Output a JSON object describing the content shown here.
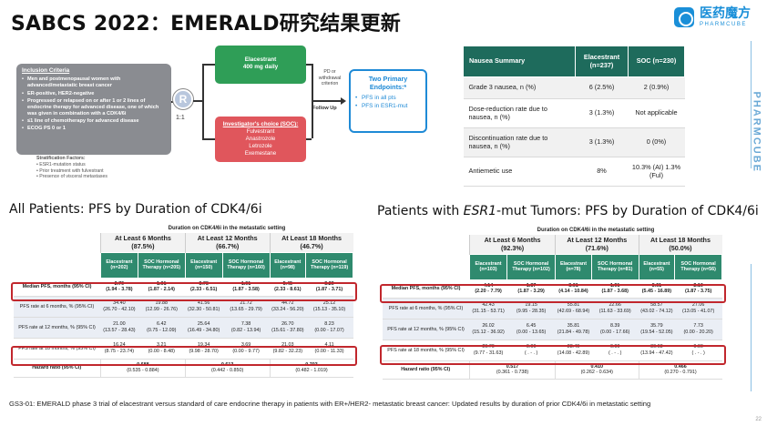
{
  "header": {
    "title": "SABCS 2022：EMERALD研究结果更新"
  },
  "logo": {
    "cn": "医药魔方",
    "en": "PHARMCUBE"
  },
  "side_brand": "PHARMCUBE",
  "schema": {
    "criteria_title": "Inclusion Criteria",
    "criteria": [
      "Men and postmenopausal women with advanced/metastatic breast cancer",
      "ER-positive, HER2-negative",
      "Progressed or relapsed on or after 1 or 2 lines of endocrine therapy for advanced disease, one of which was given in combination with a CDK4/6i",
      "≤1 line of chemotherapy for advanced disease",
      "ECOG PS 0 or 1"
    ],
    "strat_title": "Stratification Factors:",
    "strat": [
      "ESR1-mutation status",
      "Prior treatment with fulvestrant",
      "Presence of visceral metastases"
    ],
    "randomize": "R",
    "ratio": "1:1",
    "arm_e_name": "Elacestrant",
    "arm_e_dose": "400 mg daily",
    "arm_s_title": "Investigator's choice (SOC):",
    "arm_s_drugs": [
      "Fulvestrant",
      "Anastrozole",
      "Letrozole",
      "Exemestane"
    ],
    "pd": "PD or withdrawal criterion",
    "followup": "Follow Up",
    "endpoints_title": "Two Primary Endpoints:*",
    "endpoints": [
      "PFS in all pts",
      "PFS in ESR1-mut"
    ]
  },
  "nausea": {
    "headers": [
      "Nausea Summary",
      "Elacestrant (n=237)",
      "SOC (n=230)"
    ],
    "rows": [
      [
        "Grade 3 nausea, n (%)",
        "6 (2.5%)",
        "2 (0.9%)"
      ],
      [
        "Dose-reduction rate due to nausea, n (%)",
        "3 (1.3%)",
        "Not applicable"
      ],
      [
        "Discontinuation rate due to nausea, n (%)",
        "3 (1.3%)",
        "0 (0%)"
      ],
      [
        "Antiemetic use",
        "8%",
        "10.3% (AI) 1.3% (Ful)"
      ]
    ]
  },
  "all_title": "All Patients: PFS by Duration of CDK4/6i",
  "esr1_title_pre": "Patients with ",
  "esr1_title_em": "ESR1",
  "esr1_title_post": "-mut Tumors: PFS by Duration of CDK4/6i",
  "all_table": {
    "duration": "Duration on CDK4/6i in the metastatic setting",
    "groups": [
      {
        "label": "At Least 6 Months",
        "pct": "(87.5%)"
      },
      {
        "label": "At Least 12 Months",
        "pct": "(66.7%)"
      },
      {
        "label": "At Least 18 Months",
        "pct": "(46.7%)"
      }
    ],
    "arms": [
      "Elacestrant (n=202)",
      "SOC Hormonal Therapy (n=205)",
      "Elacestrant (n=150)",
      "SOC Hormonal Therapy (n=160)",
      "Elacestrant (n=98)",
      "SOC Hormonal Therapy (n=119)"
    ],
    "rows": [
      {
        "label": "Median PFS, months (95% CI)",
        "cells": [
          [
            "2.79",
            "(1.94 - 3.78)"
          ],
          [
            "1.91",
            "(1.87 - 2.14)"
          ],
          [
            "3.78",
            "(2.33 - 6.51)"
          ],
          [
            "1.91",
            "(1.87 - 3.58)"
          ],
          [
            "5.45",
            "(2.33 - 8.61)"
          ],
          [
            "3.29",
            "(1.87 - 3.71)"
          ]
        ]
      },
      {
        "label": "PFS rate at 6 months, % (95% CI)",
        "cells": [
          [
            "34.40",
            "(26.70 - 42.10)"
          ],
          [
            "19.88",
            "(12.99 - 26.76)"
          ],
          [
            "41.56",
            "(32.30 - 50.81)"
          ],
          [
            "21.72",
            "(13.65 - 29.79)"
          ],
          [
            "44.72",
            "(33.24 - 56.20)"
          ],
          [
            "25.12",
            "(15.13 - 35.10)"
          ]
        ]
      },
      {
        "label": "PFS rate at 12 months, % (95% CI)",
        "cells": [
          [
            "21.00",
            "(13.57 - 28.43)"
          ],
          [
            "6.42",
            "(0.75 - 12.09)"
          ],
          [
            "25.64",
            "(16.49 - 34.80)"
          ],
          [
            "7.38",
            "(0.82 - 13.94)"
          ],
          [
            "26.70",
            "(15.61 - 37.80)"
          ],
          [
            "8.23",
            "(0.00 - 17.07)"
          ]
        ]
      },
      {
        "label": "PFS rate at 18 months, % (95% CI)",
        "cells": [
          [
            "16.24",
            "(8.75 - 23.74)"
          ],
          [
            "3.21",
            "(0.00 - 8.48)"
          ],
          [
            "19.34",
            "(9.98 - 28.70)"
          ],
          [
            "3.69",
            "(0.00 - 9.77)"
          ],
          [
            "21.03",
            "(9.82 - 32.23)"
          ],
          [
            "4.11",
            "(0.00 - 11.33)"
          ]
        ]
      }
    ],
    "hr_label": "Hazard ratio (95% CI)",
    "hr": [
      [
        "0.688",
        "(0.535 - 0.884)"
      ],
      [
        "0.613",
        "(0.442 - 0.850)"
      ],
      [
        "0.703",
        "(0.482 - 1.019)"
      ]
    ]
  },
  "esr1_table": {
    "duration": "Duration on CDK4/6i in the metastatic setting",
    "groups": [
      {
        "label": "At Least 6 Months",
        "pct": "(92.3%)"
      },
      {
        "label": "At Least 12 Months",
        "pct": "(71.6%)"
      },
      {
        "label": "At Least 18 Months",
        "pct": "(50.0%)"
      }
    ],
    "arms": [
      "Elacestrant (n=103)",
      "SOC Hormonal Therapy (n=102)",
      "Elacestrant (n=78)",
      "SOC Hormonal Therapy (n=81)",
      "Elacestrant (n=55)",
      "SOC Hormonal Therapy (n=56)"
    ],
    "rows": [
      {
        "label": "Median PFS, months (95% CI)",
        "cells": [
          [
            "4.14",
            "(2.20 - 7.79)"
          ],
          [
            "1.87",
            "(1.87 - 3.29)"
          ],
          [
            "8.61",
            "(4.14 - 10.84)"
          ],
          [
            "1.91",
            "(1.87 - 3.68)"
          ],
          [
            "8.61",
            "(5.45 - 16.89)"
          ],
          [
            "2.10",
            "(1.87 - 3.75)"
          ]
        ]
      },
      {
        "label": "PFS rate at 6 months, % (95% CI)",
        "cells": [
          [
            "42.43",
            "(31.15 - 53.71)"
          ],
          [
            "19.15",
            "(9.95 - 28.35)"
          ],
          [
            "55.81",
            "(42.69 - 68.94)"
          ],
          [
            "22.66",
            "(11.63 - 33.69)"
          ],
          [
            "58.57",
            "(43.02 - 74.12)"
          ],
          [
            "27.06",
            "(13.05 - 41.07)"
          ]
        ]
      },
      {
        "label": "PFS rate at 12 months, % (95% CI)",
        "cells": [
          [
            "26.02",
            "(15.12 - 36.92)"
          ],
          [
            "6.45",
            "(0.00 - 13.65)"
          ],
          [
            "35.81",
            "(21.84 - 49.78)"
          ],
          [
            "8.39",
            "(0.00 - 17.66)"
          ],
          [
            "35.79",
            "(19.54 - 52.05)"
          ],
          [
            "7.73",
            "(0.00 - 20.20)"
          ]
        ]
      },
      {
        "label": "PFS rate at 18 months, % (95% CI)",
        "cells": [
          [
            "20.70",
            "(9.77 - 31.63)"
          ],
          [
            "0.00",
            "( . - . )"
          ],
          [
            "28.49",
            "(14.08 - 42.89)"
          ],
          [
            "0.00",
            "( . - . )"
          ],
          [
            "30.68",
            "(13.94 - 47.42)"
          ],
          [
            "0.00",
            "( . - . )"
          ]
        ]
      }
    ],
    "hr_label": "Hazard ratio (95% CI)",
    "hr": [
      [
        "0.517",
        "(0.361 - 0.738)"
      ],
      [
        "0.410",
        "(0.262 - 0.634)"
      ],
      [
        "0.466",
        "(0.270 - 0.791)"
      ]
    ]
  },
  "footnote": "GS3-01: EMERALD phase 3 trial of elacestrant versus standard of care endocrine therapy in patients with ER+/HER2- metastatic breast cancer: Updated results by duration of prior CDK4/6i in metastatic setting",
  "page_number": "22",
  "colors": {
    "brand": "#1a8fd8",
    "table_header": "#1e6b5c",
    "arm_header": "#2f8a6e",
    "elacestrant": "#2f9e57",
    "soc": "#e0565c",
    "highlight": "#c1272d"
  }
}
